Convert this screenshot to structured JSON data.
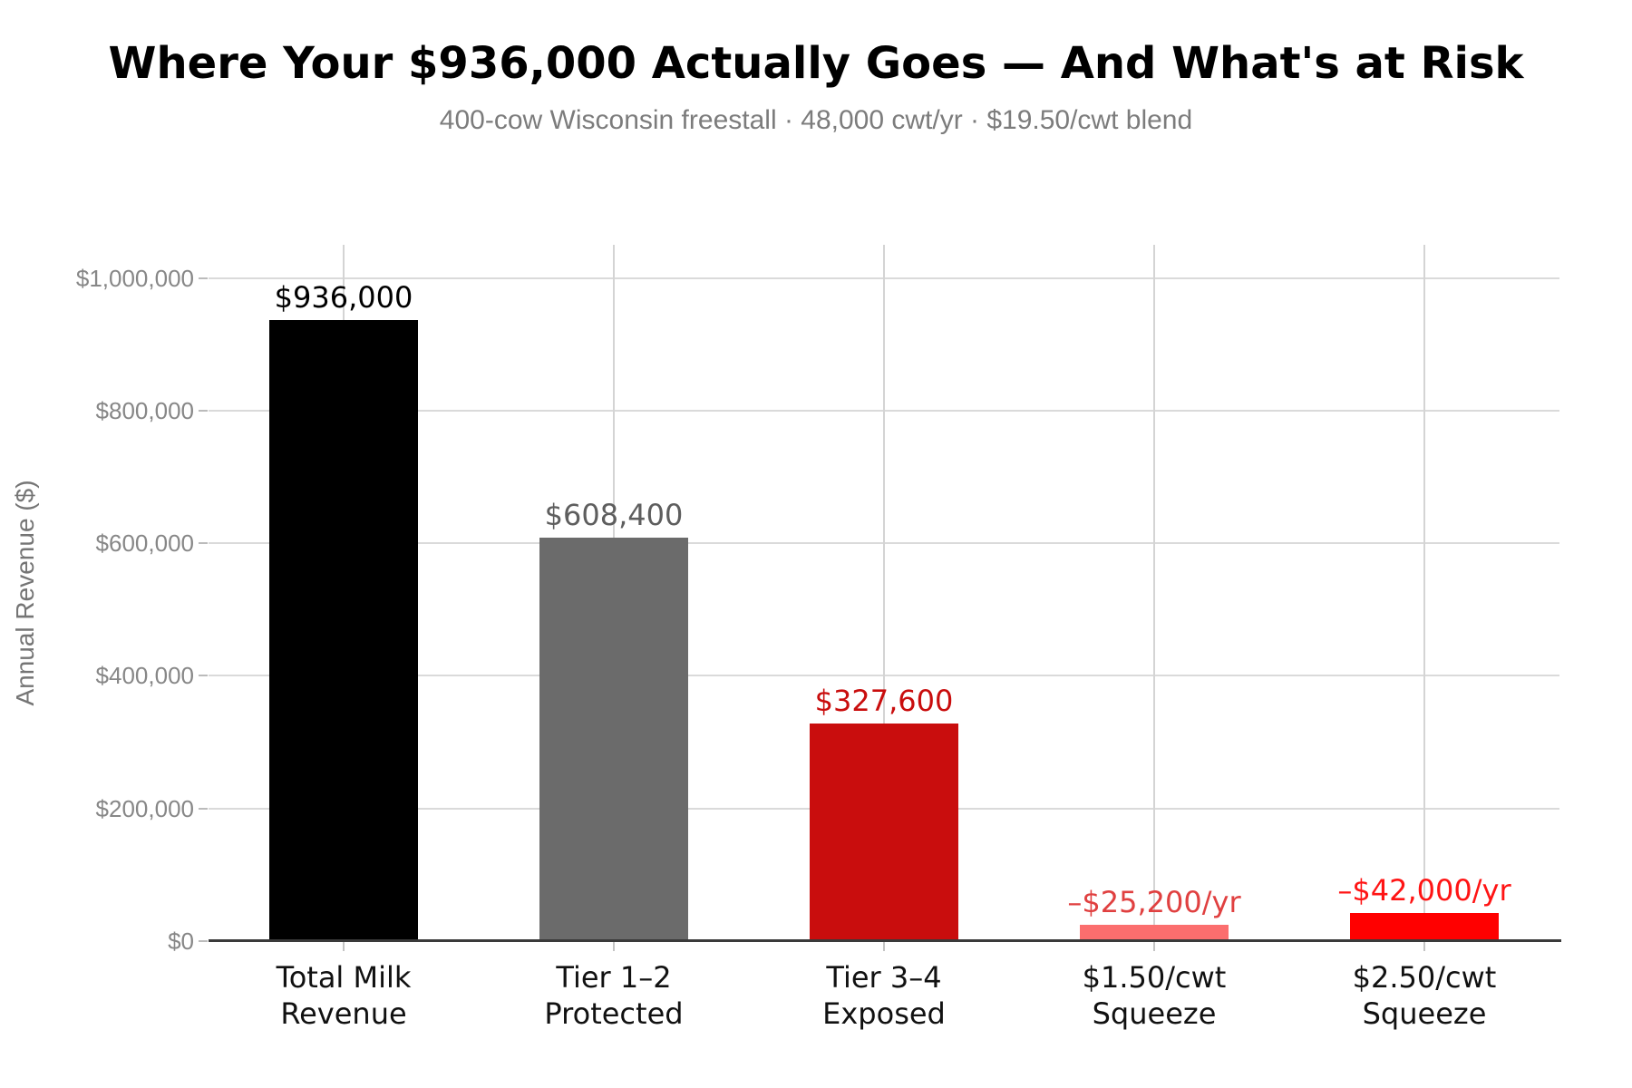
{
  "chart_data": {
    "type": "bar",
    "title": "Where Your $936,000 Actually Goes — And What's at Risk",
    "subtitle": "400-cow Wisconsin freestall · 48,000 cwt/yr · $19.50/cwt blend",
    "ylabel": "Annual Revenue ($)",
    "xlabel": "",
    "ylim": [
      0,
      1050000
    ],
    "grid": true,
    "legend": "none",
    "ytick_values": [
      0,
      200000,
      400000,
      600000,
      800000,
      1000000
    ],
    "ytick_labels": [
      "$0",
      "$200,000",
      "$400,000",
      "$600,000",
      "$800,000",
      "$1,000,000"
    ],
    "categories": [
      "Total Milk\nRevenue",
      "Tier 1–2\nProtected",
      "Tier 3–4\nExposed",
      "$1.50/cwt\nSqueeze",
      "$2.50/cwt\nSqueeze"
    ],
    "values": [
      936000,
      608400,
      327600,
      25200,
      42000
    ],
    "value_labels": [
      "$936,000",
      "$608,400",
      "$327,600",
      "–$25,200/yr",
      "–$42,000/yr"
    ],
    "bar_colors": [
      "#000000",
      "#6b6b6b",
      "#c90d0d",
      "#fb6e6e",
      "#ff0000"
    ],
    "value_label_colors": [
      "#000000",
      "#5e5e5e",
      "#c90d0d",
      "#e04040",
      "#ff1414"
    ],
    "grid_color": "#dadada",
    "axis_line_color": "#3a3a3a"
  }
}
